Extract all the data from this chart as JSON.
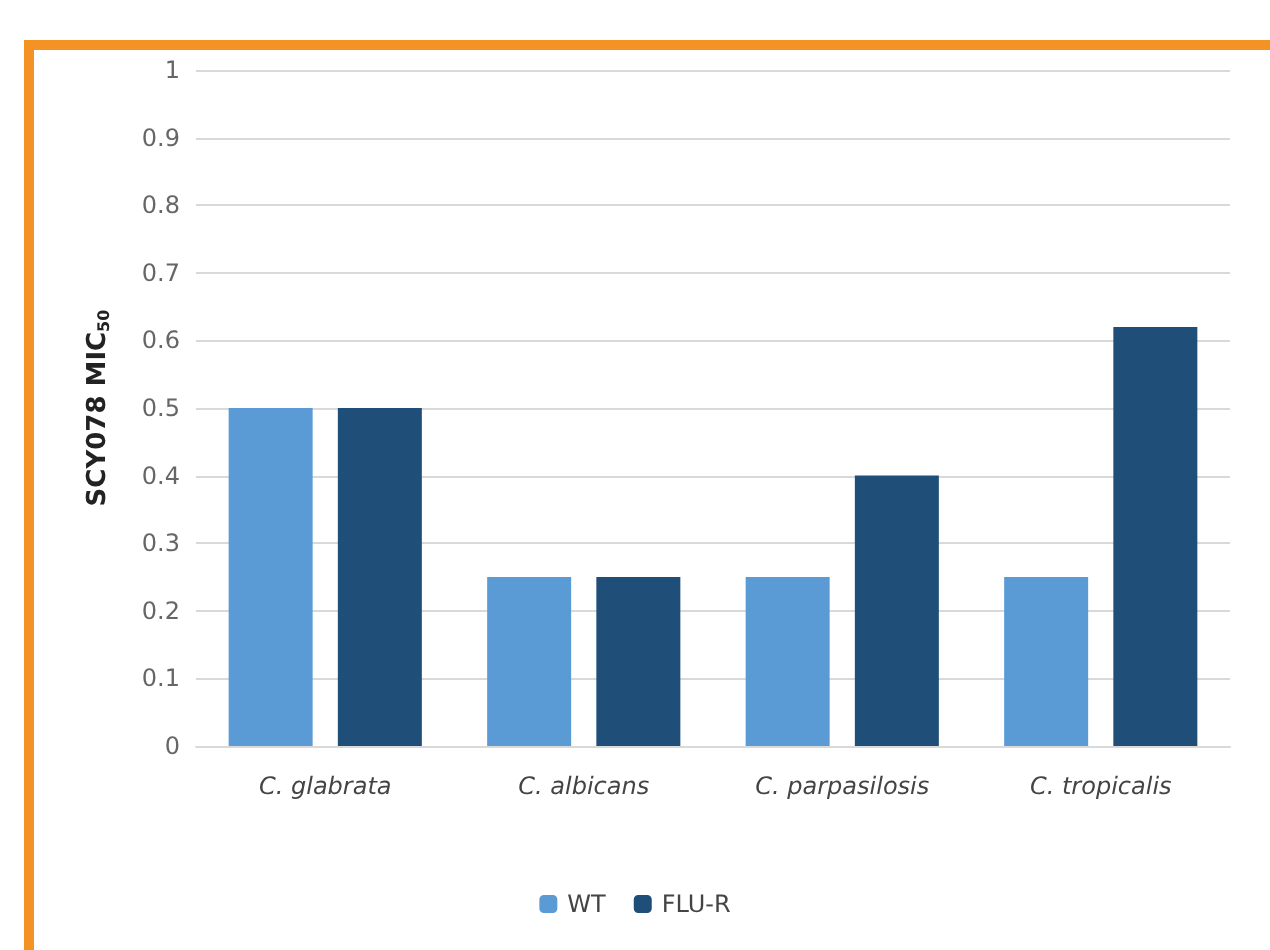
{
  "chart_data": {
    "type": "bar",
    "ylabel": "SCY078 MIC$_{50}$",
    "categories": [
      "C. glabrata",
      "C. albicans",
      "C. parpasilosis",
      "C. tropicalis"
    ],
    "series": [
      {
        "name": "WT",
        "color": "#5b9bd5",
        "values": [
          0.5,
          0.25,
          0.25,
          0.25
        ]
      },
      {
        "name": "FLU-R",
        "color": "#1f4e79",
        "values": [
          0.5,
          0.25,
          0.4,
          0.62
        ]
      }
    ],
    "ylim": [
      0,
      1
    ],
    "yticks": [
      0,
      0.1,
      0.2,
      0.3,
      0.4,
      0.5,
      0.6,
      0.7,
      0.8,
      0.9,
      1
    ],
    "grid": "y",
    "legend": "bottom"
  }
}
